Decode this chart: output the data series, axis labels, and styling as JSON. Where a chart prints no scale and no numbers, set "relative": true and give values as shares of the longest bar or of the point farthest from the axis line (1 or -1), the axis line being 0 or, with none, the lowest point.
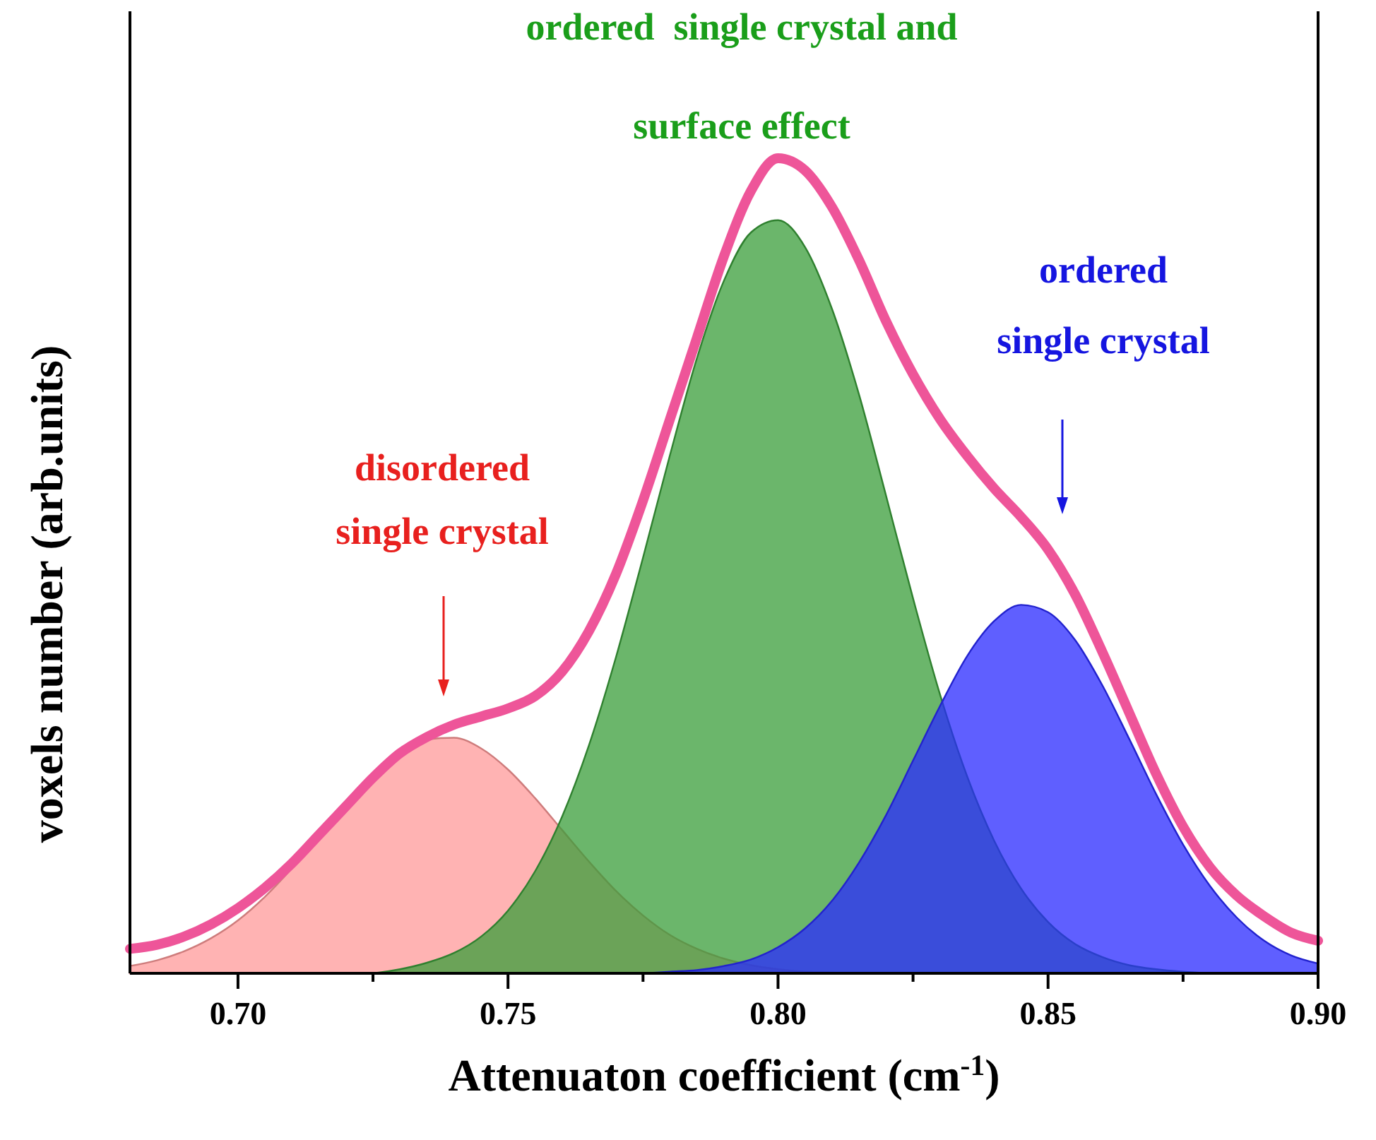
{
  "chart_data": {
    "type": "area",
    "relative": true,
    "xlabel": "Attenuaton coefficient (cm$^{-1}$)",
    "ylabel": "voxels number (arb.units)",
    "xlim": [
      0.68,
      0.9
    ],
    "xticks": [
      {
        "value": 0.7,
        "label": "0.70"
      },
      {
        "value": 0.725,
        "label": null
      },
      {
        "value": 0.75,
        "label": "0.75"
      },
      {
        "value": 0.775,
        "label": null
      },
      {
        "value": 0.8,
        "label": "0.80"
      },
      {
        "value": 0.825,
        "label": null
      },
      {
        "value": 0.85,
        "label": "0.85"
      },
      {
        "value": 0.875,
        "label": null
      },
      {
        "value": 0.9,
        "label": "0.90"
      }
    ],
    "x": [
      0.68,
      0.685,
      0.69,
      0.695,
      0.7,
      0.705,
      0.71,
      0.715,
      0.72,
      0.725,
      0.73,
      0.735,
      0.74,
      0.745,
      0.75,
      0.755,
      0.76,
      0.765,
      0.77,
      0.775,
      0.78,
      0.785,
      0.79,
      0.795,
      0.8,
      0.805,
      0.81,
      0.815,
      0.82,
      0.825,
      0.83,
      0.835,
      0.84,
      0.845,
      0.85,
      0.855,
      0.86,
      0.865,
      0.87,
      0.875,
      0.88,
      0.885,
      0.89,
      0.895,
      0.9
    ],
    "series": [
      {
        "type": "area",
        "color": "#ff9a9a",
        "values": [
          0.009,
          0.016,
          0.027,
          0.043,
          0.065,
          0.094,
          0.129,
          0.168,
          0.207,
          0.244,
          0.271,
          0.287,
          0.289,
          0.276,
          0.25,
          0.215,
          0.176,
          0.137,
          0.101,
          0.071,
          0.047,
          0.03,
          0.018,
          0.01,
          0.005,
          0.002,
          0.001,
          0,
          0,
          null,
          null,
          null,
          null,
          null,
          null,
          null,
          null,
          null,
          null,
          null,
          null,
          null,
          null,
          null,
          null
        ]
      },
      {
        "type": "area",
        "color": "#3a9e3a",
        "values": [
          null,
          null,
          null,
          null,
          null,
          null,
          null,
          null,
          null,
          0,
          0.005,
          0.013,
          0.025,
          0.045,
          0.077,
          0.125,
          0.192,
          0.28,
          0.388,
          0.51,
          0.636,
          0.755,
          0.85,
          0.909,
          0.924,
          0.891,
          0.815,
          0.71,
          0.586,
          0.46,
          0.342,
          0.242,
          0.163,
          0.104,
          0.063,
          0.036,
          0.02,
          0.01,
          0.005,
          0.002,
          0,
          null,
          null,
          null,
          null
        ]
      },
      {
        "type": "area",
        "color": "#2a2aff",
        "values": [
          null,
          null,
          null,
          null,
          null,
          null,
          null,
          null,
          null,
          null,
          null,
          null,
          null,
          null,
          null,
          null,
          null,
          null,
          null,
          0,
          0.002,
          0.004,
          0.009,
          0.017,
          0.032,
          0.055,
          0.089,
          0.136,
          0.194,
          0.261,
          0.328,
          0.389,
          0.432,
          0.452,
          0.443,
          0.409,
          0.354,
          0.288,
          0.22,
          0.158,
          0.107,
          0.068,
          0.04,
          0.022,
          0.012
        ]
      },
      {
        "type": "line",
        "color": "#ee5599",
        "values": [
          0.03,
          0.035,
          0.045,
          0.06,
          0.08,
          0.105,
          0.135,
          0.17,
          0.205,
          0.24,
          0.27,
          0.29,
          0.305,
          0.315,
          0.325,
          0.34,
          0.37,
          0.42,
          0.49,
          0.58,
          0.68,
          0.78,
          0.88,
          0.96,
          1.0,
          0.985,
          0.94,
          0.875,
          0.8,
          0.735,
          0.68,
          0.635,
          0.595,
          0.56,
          0.52,
          0.465,
          0.395,
          0.32,
          0.245,
          0.18,
          0.13,
          0.095,
          0.07,
          0.05,
          0.04
        ]
      }
    ],
    "annotations": [
      "disordered\nsingle crystal",
      "ordered  single crystal and\nsurface effect",
      "ordered\nsingle crystal"
    ]
  }
}
